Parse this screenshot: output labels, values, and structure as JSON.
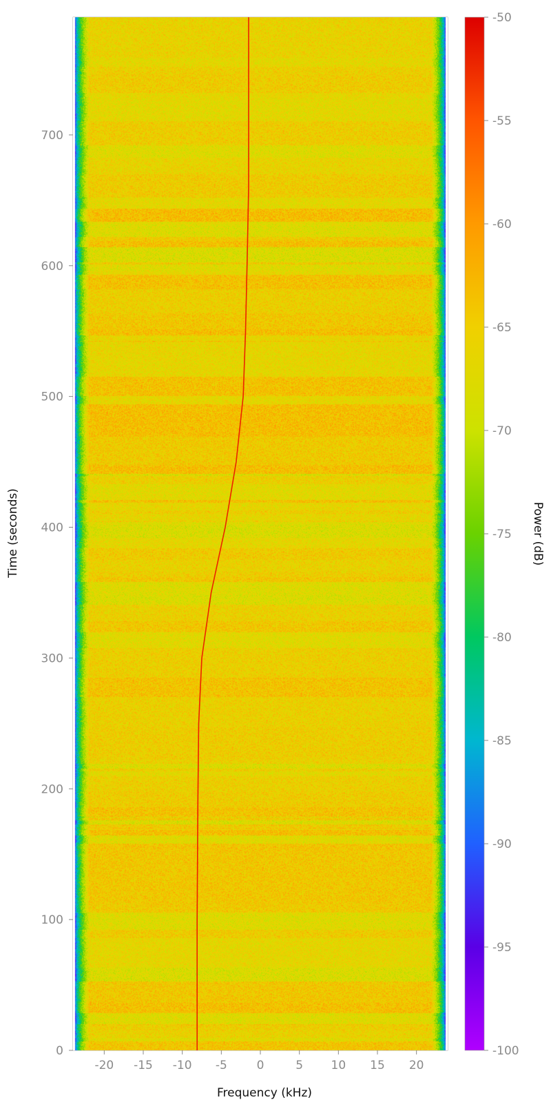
{
  "chart_data": {
    "type": "heatmap",
    "title": "",
    "xlabel": "Frequency (kHz)",
    "ylabel": "Time (seconds)",
    "xlim": [
      -24,
      24
    ],
    "ylim": [
      0,
      790
    ],
    "x_ticks": [
      -20,
      -15,
      -10,
      -5,
      0,
      5,
      10,
      15,
      20
    ],
    "x_tick_labels": [
      "-20",
      "-15",
      "-10",
      "-5",
      "0",
      "5",
      "10",
      "15",
      "20"
    ],
    "y_ticks": [
      0,
      100,
      200,
      300,
      400,
      500,
      600,
      700
    ],
    "y_tick_labels": [
      "0",
      "100",
      "200",
      "300",
      "400",
      "500",
      "600",
      "700"
    ],
    "grid": false,
    "colorbar": {
      "label": "Power (dB)",
      "range": [
        -100,
        -50
      ],
      "ticks": [
        -50,
        -55,
        -60,
        -65,
        -70,
        -75,
        -80,
        -85,
        -90,
        -95,
        -100
      ],
      "tick_labels": [
        "-50",
        "-55",
        "-60",
        "-65",
        "-70",
        "-75",
        "-80",
        "-85",
        "-90",
        "-95",
        "-100"
      ],
      "colors": [
        "#b000ff",
        "#5a00e6",
        "#2060ff",
        "#00b7d0",
        "#00c860",
        "#6ad200",
        "#cde200",
        "#f0d000",
        "#ff9a00",
        "#ff5500",
        "#dd0000"
      ]
    },
    "background_power_db": -66,
    "edge_power_db": -92,
    "signal_trace": {
      "power_db": -52,
      "time_s": [
        0,
        100,
        190,
        250,
        300,
        350,
        400,
        450,
        500,
        550,
        600,
        660,
        790
      ],
      "frequency_khz": [
        -8.1,
        -8.1,
        -8.0,
        -7.9,
        -7.5,
        -6.3,
        -4.5,
        -3.1,
        -2.2,
        -1.9,
        -1.7,
        -1.5,
        -1.5
      ]
    }
  }
}
